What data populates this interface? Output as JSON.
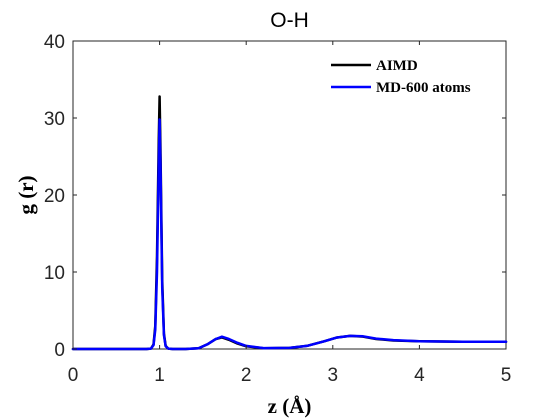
{
  "chart_data": {
    "type": "line",
    "title": "O-H",
    "xlabel": "z (Å)",
    "ylabel": "g (r)",
    "xlim": [
      0,
      5
    ],
    "ylim": [
      0,
      40
    ],
    "xticks": [
      0,
      1,
      2,
      3,
      4,
      5
    ],
    "yticks": [
      0,
      10,
      20,
      30,
      40
    ],
    "xtick_labels": [
      "0",
      "1",
      "2",
      "3",
      "4",
      "5"
    ],
    "ytick_labels": [
      "0",
      "10",
      "20",
      "30",
      "40"
    ],
    "grid": false,
    "legend_position": "top-right",
    "series": [
      {
        "name": "AIMD",
        "color": "#000000",
        "x": [
          0,
          0.5,
          0.85,
          0.9,
          0.93,
          0.95,
          0.97,
          0.99,
          1.0,
          1.01,
          1.03,
          1.05,
          1.07,
          1.1,
          1.15,
          1.3,
          1.45,
          1.55,
          1.65,
          1.72,
          1.8,
          1.9,
          2.0,
          2.2,
          2.5,
          2.7,
          2.9,
          3.05,
          3.2,
          3.35,
          3.5,
          3.7,
          4.0,
          4.5,
          5.0
        ],
        "y": [
          0,
          0,
          0,
          0.05,
          0.6,
          3,
          12,
          27,
          32.8,
          26,
          9,
          2,
          0.4,
          0.05,
          0,
          0,
          0.1,
          0.6,
          1.3,
          1.5,
          1.2,
          0.7,
          0.35,
          0.1,
          0.15,
          0.4,
          1.0,
          1.5,
          1.7,
          1.6,
          1.3,
          1.1,
          1.0,
          0.95,
          0.95
        ]
      },
      {
        "name": "MD-600 atoms",
        "color": "#0000ff",
        "x": [
          0,
          0.5,
          0.85,
          0.9,
          0.93,
          0.95,
          0.97,
          0.99,
          1.0,
          1.01,
          1.03,
          1.05,
          1.07,
          1.1,
          1.15,
          1.3,
          1.45,
          1.55,
          1.65,
          1.72,
          1.8,
          1.9,
          2.0,
          2.2,
          2.5,
          2.7,
          2.9,
          3.05,
          3.2,
          3.35,
          3.5,
          3.7,
          4.0,
          4.5,
          5.0
        ],
        "y": [
          0,
          0,
          0,
          0.05,
          0.5,
          2.5,
          10,
          24,
          29.8,
          24,
          8,
          1.8,
          0.35,
          0.05,
          0,
          0,
          0.1,
          0.6,
          1.3,
          1.6,
          1.3,
          0.8,
          0.4,
          0.12,
          0.15,
          0.4,
          1.0,
          1.5,
          1.7,
          1.65,
          1.35,
          1.15,
          1.0,
          0.95,
          0.95
        ]
      }
    ]
  }
}
